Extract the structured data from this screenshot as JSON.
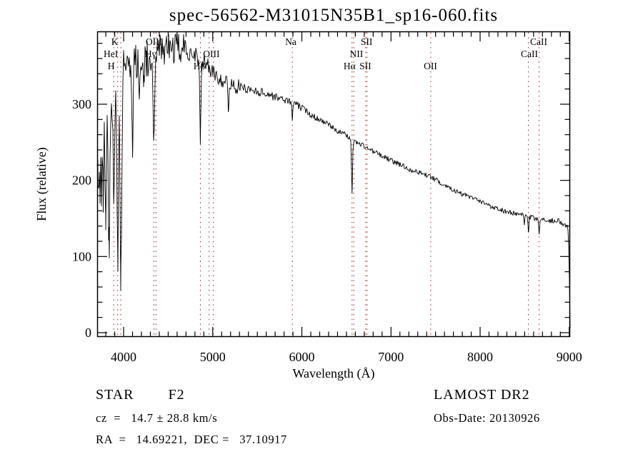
{
  "title": "spec-56562-M31015N35B1_sp16-060.fits",
  "annotations": {
    "class_label": "STAR        F2",
    "cz_label": "cz  =   14.7 ± 28.8 km/s",
    "radec_label": "RA  =   14.69221,  DEC =   37.10917",
    "survey_label": "LAMOST DR2",
    "obsdate_label": "Obs-Date: 20130926"
  },
  "colors": {
    "background": "#ffffff",
    "curve": "#000000",
    "axis": "#000000",
    "text": "#000000",
    "line_marker": "#9b2a2a"
  },
  "chart_data": {
    "type": "line",
    "title": "spec-56562-M31015N35B1_sp16-060.fits",
    "xlabel": "Wavelength (Å)",
    "ylabel": "Flux (relative)",
    "xlim": [
      3703,
      9010
    ],
    "ylim": [
      -6,
      396
    ],
    "x_ticks": [
      4000,
      5000,
      6000,
      7000,
      8000,
      9000
    ],
    "x_minor_step": 100,
    "y_ticks": [
      0,
      100,
      200,
      300
    ],
    "y_minor_step": 20,
    "grid": false,
    "legend": false,
    "line_markers": [
      3889,
      3933,
      3968,
      4340,
      4363,
      4861,
      4959,
      5007,
      5893,
      6563,
      6583,
      6716,
      6731,
      7446,
      8542,
      8662
    ],
    "line_labels": [
      {
        "text": "K",
        "row": 1,
        "wl": 3900
      },
      {
        "text": "HeI",
        "row": 2,
        "wl": 3856
      },
      {
        "text": "H",
        "row": 3,
        "wl": 3860
      },
      {
        "text": "OIII",
        "row": 1,
        "wl": 4340
      },
      {
        "text": "Hγ",
        "row": 2,
        "wl": 4302
      },
      {
        "text": "Hβ",
        "row": 3,
        "wl": 4850
      },
      {
        "text": "OIII",
        "row": 2,
        "wl": 4985
      },
      {
        "text": "Na",
        "row": 1,
        "wl": 5876
      },
      {
        "text": "NII",
        "row": 2,
        "wl": 6612
      },
      {
        "text": "Hα",
        "row": 3,
        "wl": 6535
      },
      {
        "text": "SII",
        "row": 1,
        "wl": 6726
      },
      {
        "text": "SII",
        "row": 3,
        "wl": 6712
      },
      {
        "text": "OII",
        "row": 3,
        "wl": 7443
      },
      {
        "text": "CaII",
        "row": 1,
        "wl": 8657
      },
      {
        "text": "CaII",
        "row": 2,
        "wl": 8553
      }
    ],
    "continuum": [
      [
        3703,
        255
      ],
      [
        3710,
        268
      ],
      [
        3740,
        275
      ],
      [
        3760,
        278
      ],
      [
        3800,
        290
      ],
      [
        3850,
        310
      ],
      [
        3900,
        330
      ],
      [
        3950,
        345
      ],
      [
        4000,
        350
      ],
      [
        4100,
        358
      ],
      [
        4200,
        362
      ],
      [
        4300,
        365
      ],
      [
        4450,
        372
      ],
      [
        4600,
        374
      ],
      [
        4750,
        370
      ],
      [
        4870,
        360
      ],
      [
        4950,
        350
      ],
      [
        5010,
        340
      ],
      [
        5100,
        332
      ],
      [
        5250,
        324
      ],
      [
        5400,
        320
      ],
      [
        5600,
        314
      ],
      [
        5750,
        308
      ],
      [
        5900,
        302
      ],
      [
        6000,
        295
      ],
      [
        6100,
        287
      ],
      [
        6200,
        280
      ],
      [
        6300,
        273
      ],
      [
        6400,
        265
      ],
      [
        6500,
        259
      ],
      [
        6600,
        251
      ],
      [
        6700,
        245
      ],
      [
        6800,
        238
      ],
      [
        6900,
        232
      ],
      [
        7000,
        226
      ],
      [
        7100,
        221
      ],
      [
        7200,
        215
      ],
      [
        7300,
        211
      ],
      [
        7400,
        207
      ],
      [
        7500,
        201
      ],
      [
        7600,
        194
      ],
      [
        7700,
        188
      ],
      [
        7800,
        182
      ],
      [
        7900,
        177
      ],
      [
        8000,
        172
      ],
      [
        8100,
        167
      ],
      [
        8200,
        163
      ],
      [
        8300,
        159
      ],
      [
        8400,
        156
      ],
      [
        8500,
        153
      ],
      [
        8600,
        150
      ],
      [
        8700,
        147
      ],
      [
        8800,
        147
      ],
      [
        8860,
        148
      ],
      [
        8900,
        145
      ],
      [
        8950,
        142
      ],
      [
        8985,
        140
      ],
      [
        9000,
        90
      ],
      [
        9005,
        40
      ],
      [
        9009,
        4
      ]
    ],
    "absorption_lines": [
      [
        3712,
        60,
        5
      ],
      [
        3722,
        70,
        5
      ],
      [
        3734,
        80,
        5
      ],
      [
        3750,
        90,
        5
      ],
      [
        3771,
        100,
        6
      ],
      [
        3798,
        130,
        7
      ],
      [
        3835,
        200,
        8
      ],
      [
        3889,
        150,
        8
      ],
      [
        3933,
        255,
        9
      ],
      [
        3969,
        265,
        10
      ],
      [
        4101,
        105,
        8
      ],
      [
        4227,
        40,
        4
      ],
      [
        4340,
        112,
        8
      ],
      [
        4861,
        108,
        7
      ],
      [
        5175,
        38,
        6
      ],
      [
        5893,
        26,
        4
      ],
      [
        6563,
        68,
        6
      ],
      [
        8498,
        10,
        4
      ],
      [
        8542,
        22,
        4
      ],
      [
        8662,
        18,
        4
      ]
    ],
    "noise_profile": [
      [
        3703,
        3950,
        38
      ],
      [
        3950,
        4200,
        30
      ],
      [
        4200,
        4700,
        22
      ],
      [
        4700,
        5000,
        14
      ],
      [
        5000,
        5300,
        10
      ],
      [
        5300,
        5700,
        6
      ],
      [
        5700,
        6200,
        4.5
      ],
      [
        6200,
        7200,
        3.5
      ],
      [
        7200,
        8200,
        3.2
      ],
      [
        8200,
        9010,
        3.5
      ]
    ],
    "seed": 1337
  }
}
